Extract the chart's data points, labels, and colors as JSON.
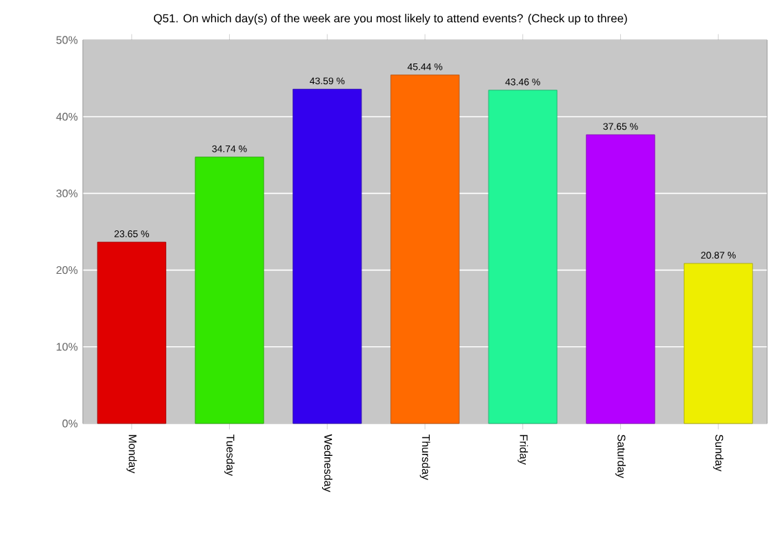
{
  "chart_data": {
    "type": "bar",
    "title": "Q51. On which day(s) of the week are you most likely to attend events? (Check up to three)",
    "categories": [
      "Monday",
      "Tuesday",
      "Wednesday",
      "Thursday",
      "Friday",
      "Saturday",
      "Sunday"
    ],
    "values": [
      23.65,
      34.74,
      43.59,
      45.44,
      43.46,
      37.65,
      20.87
    ],
    "colors": [
      "#e00000",
      "#33e600",
      "#3300ee",
      "#ff6a00",
      "#22f596",
      "#b400ff",
      "#eeee00"
    ],
    "value_labels": [
      "23.65 %",
      "34.74 %",
      "43.59 %",
      "45.44 %",
      "43.46 %",
      "37.65 %",
      "20.87 %"
    ],
    "ylim": [
      0,
      50
    ],
    "yticks": [
      {
        "value": 0,
        "label": "0%"
      },
      {
        "value": 10,
        "label": "10%"
      },
      {
        "value": 20,
        "label": "20%"
      },
      {
        "value": 30,
        "label": "30%"
      },
      {
        "value": 40,
        "label": "40%"
      },
      {
        "value": 50,
        "label": "50%"
      }
    ],
    "grid": "y"
  }
}
